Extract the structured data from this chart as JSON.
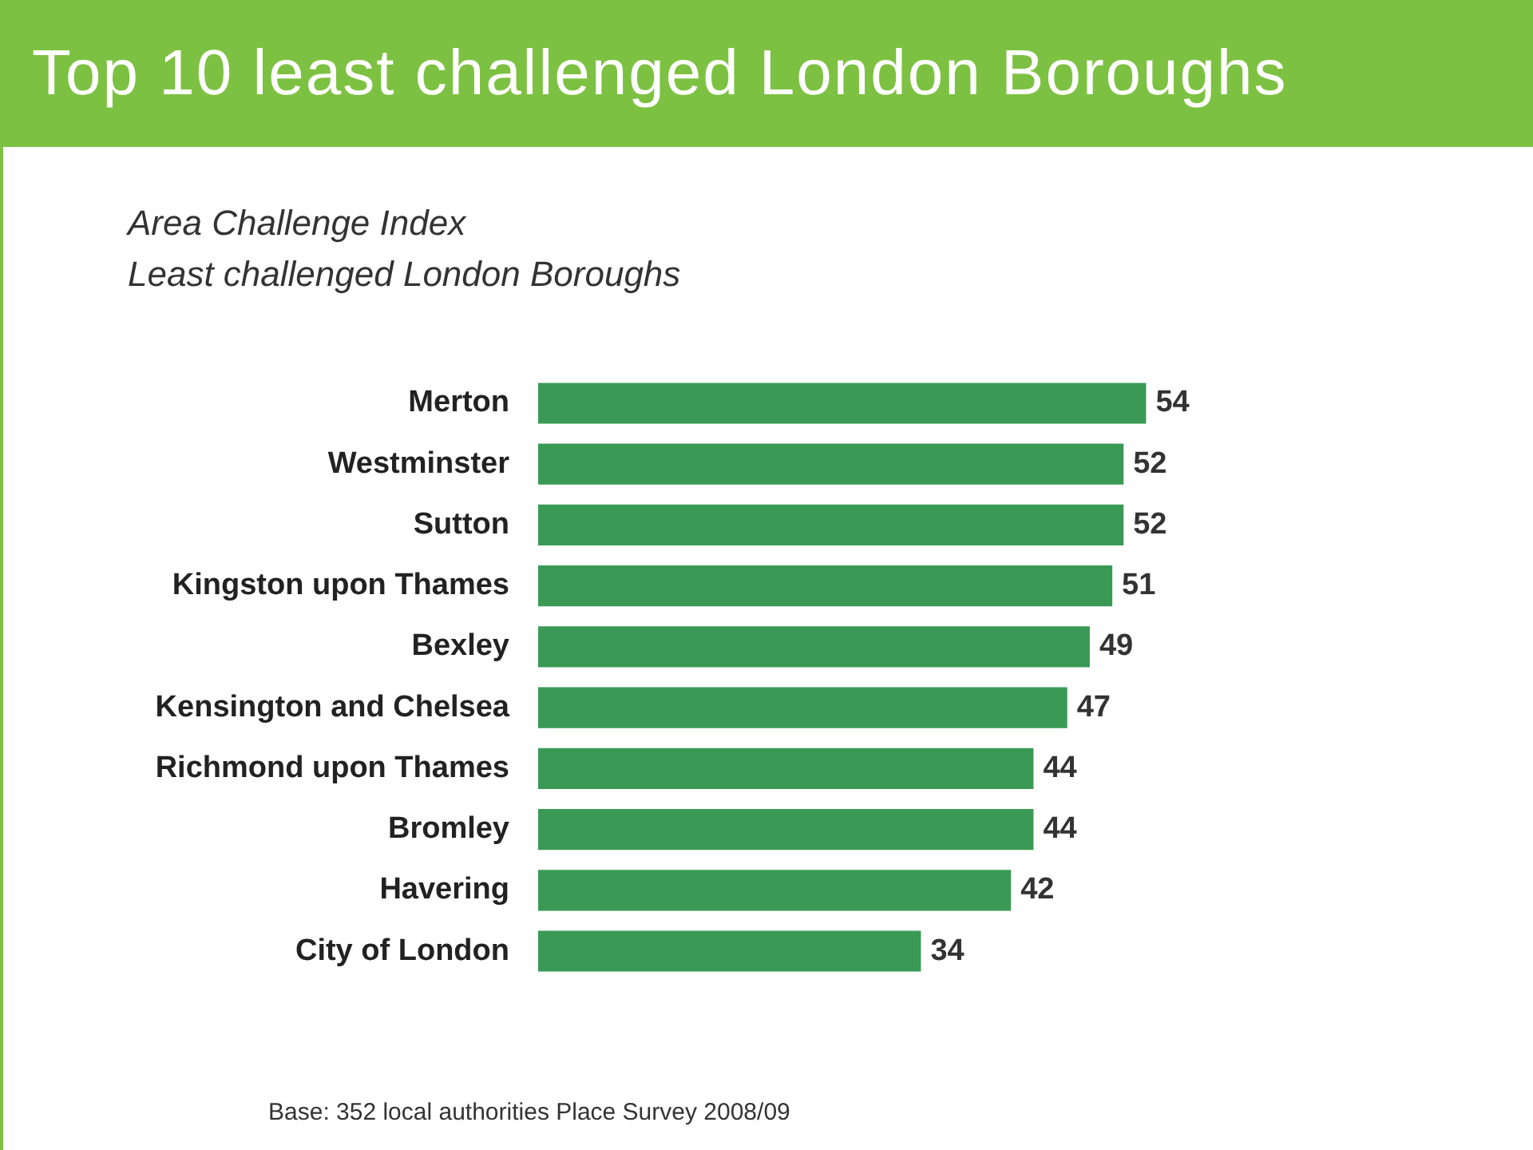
{
  "chart_data": {
    "type": "bar",
    "orientation": "horizontal",
    "title": "Top 10 least challenged London Boroughs",
    "subtitle": "Area Challenge Index\nLeast challenged London Boroughs",
    "categories": [
      "Merton",
      "Westminster",
      "Sutton",
      "Kingston upon Thames",
      "Bexley",
      "Kensington and Chelsea",
      "Richmond upon Thames",
      "Bromley",
      "Havering",
      "City of London"
    ],
    "values": [
      54,
      52,
      52,
      51,
      49,
      47,
      44,
      44,
      42,
      34
    ],
    "color": "#3a9a55",
    "data_labels": true,
    "legend": false,
    "grid": false,
    "annotations": [
      "Base: 352 local authorities Place Survey 2008/09"
    ]
  }
}
